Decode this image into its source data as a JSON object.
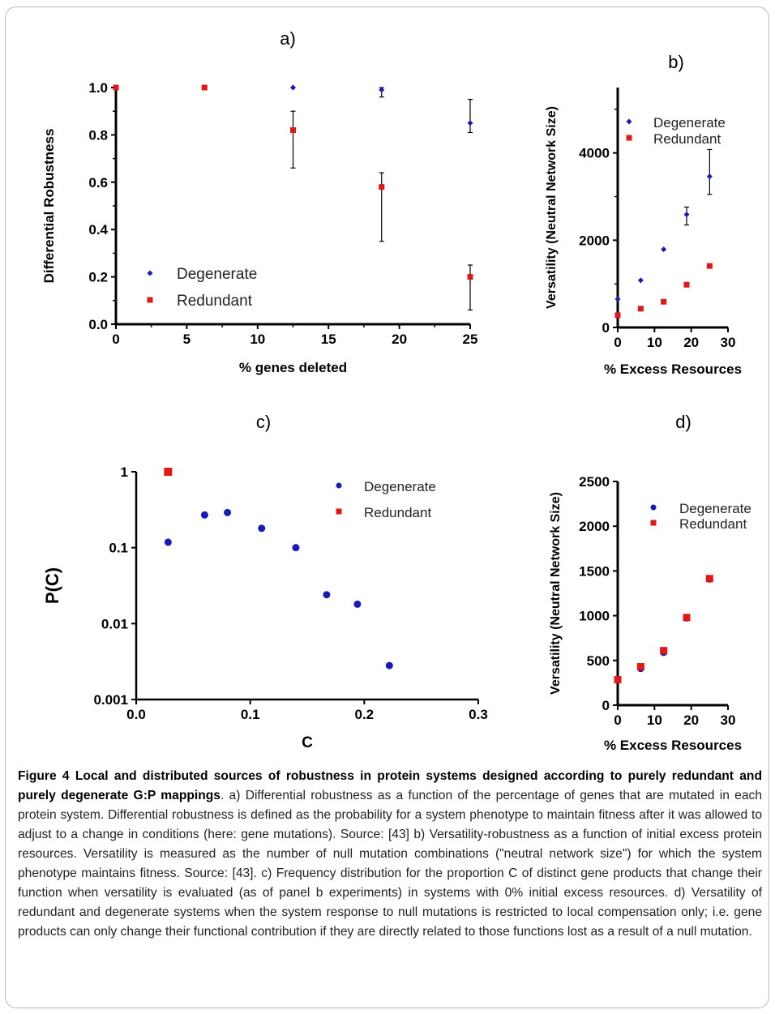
{
  "chart_data": [
    {
      "panel": "a)",
      "type": "scatter",
      "xlabel": "% genes deleted",
      "ylabel": "Differential Robustness",
      "xlim": [
        0,
        25
      ],
      "ylim": [
        0,
        1.0
      ],
      "xticks": [
        "0",
        "5",
        "10",
        "15",
        "20",
        "25"
      ],
      "yticks": [
        "0.0",
        "0.2",
        "0.4",
        "0.6",
        "0.8",
        "1.0"
      ],
      "legend_position": "bottom-left",
      "series": [
        {
          "name": "Degenerate",
          "color": "#1a1ab8",
          "marker": "diamond",
          "points": [
            {
              "x": 0,
              "y": 1.0
            },
            {
              "x": 6.25,
              "y": 1.0
            },
            {
              "x": 12.5,
              "y": 1.0
            },
            {
              "x": 18.75,
              "y": 0.99,
              "err_lo": 0.96,
              "err_hi": 1.0
            },
            {
              "x": 25,
              "y": 0.85,
              "err_lo": 0.81,
              "err_hi": 0.95
            }
          ]
        },
        {
          "name": "Redundant",
          "color": "#e01818",
          "marker": "square",
          "points": [
            {
              "x": 0,
              "y": 1.0
            },
            {
              "x": 6.25,
              "y": 1.0
            },
            {
              "x": 12.5,
              "y": 0.82,
              "err_lo": 0.66,
              "err_hi": 0.9
            },
            {
              "x": 18.75,
              "y": 0.58,
              "err_lo": 0.35,
              "err_hi": 0.64
            },
            {
              "x": 25,
              "y": 0.2,
              "err_lo": 0.06,
              "err_hi": 0.25
            }
          ]
        }
      ]
    },
    {
      "panel": "b)",
      "type": "scatter",
      "xlabel": "% Excess Resources",
      "ylabel": "Versatility  (Neutral Network Size)",
      "xlim": [
        0,
        30
      ],
      "ylim": [
        0,
        5500
      ],
      "xticks": [
        "0",
        "10",
        "20",
        "30"
      ],
      "yticks": [
        "0",
        "2000",
        "4000"
      ],
      "legend_position": "top-right",
      "series": [
        {
          "name": "Degenerate",
          "color": "#1a1ab8",
          "marker": "diamond",
          "points": [
            {
              "x": 0,
              "y": 650
            },
            {
              "x": 6.25,
              "y": 1080
            },
            {
              "x": 12.5,
              "y": 1790
            },
            {
              "x": 18.75,
              "y": 2590,
              "err_lo": 2350,
              "err_hi": 2760
            },
            {
              "x": 25,
              "y": 3460,
              "err_lo": 3050,
              "err_hi": 4080
            }
          ]
        },
        {
          "name": "Redundant",
          "color": "#e01818",
          "marker": "square",
          "points": [
            {
              "x": 0,
              "y": 280
            },
            {
              "x": 6.25,
              "y": 430
            },
            {
              "x": 12.5,
              "y": 590
            },
            {
              "x": 18.75,
              "y": 980
            },
            {
              "x": 25,
              "y": 1410
            }
          ]
        }
      ]
    },
    {
      "panel": "c)",
      "type": "scatter",
      "xlabel": "C",
      "ylabel": "P(C)",
      "xlim": [
        0,
        0.3
      ],
      "ylim": [
        0.001,
        1
      ],
      "yscale": "log",
      "xticks": [
        "0.0",
        "0.1",
        "0.2",
        "0.3"
      ],
      "yticks": [
        "0.001",
        "0.01",
        "0.1",
        "1"
      ],
      "legend_position": "top-right",
      "series": [
        {
          "name": "Degenerate",
          "color": "#1a1ab8",
          "marker": "circle",
          "points": [
            {
              "x": 0.028,
              "y": 0.118
            },
            {
              "x": 0.06,
              "y": 0.27
            },
            {
              "x": 0.08,
              "y": 0.29
            },
            {
              "x": 0.11,
              "y": 0.18
            },
            {
              "x": 0.14,
              "y": 0.1
            },
            {
              "x": 0.167,
              "y": 0.024
            },
            {
              "x": 0.194,
              "y": 0.018
            },
            {
              "x": 0.222,
              "y": 0.0028
            }
          ]
        },
        {
          "name": "Redundant",
          "color": "#e01818",
          "marker": "square",
          "points": [
            {
              "x": 0.028,
              "y": 1.0
            }
          ]
        }
      ]
    },
    {
      "panel": "d)",
      "type": "scatter",
      "xlabel": "% Excess Resources",
      "ylabel": "Versatility  (Neutral Network Size)",
      "xlim": [
        0,
        30
      ],
      "ylim": [
        0,
        2500
      ],
      "xticks": [
        "0",
        "10",
        "20",
        "30"
      ],
      "yticks": [
        "0",
        "500",
        "1000",
        "1500",
        "2000",
        "2500"
      ],
      "legend_position": "top-right",
      "series": [
        {
          "name": "Degenerate",
          "color": "#1a1ab8",
          "marker": "circle",
          "points": [
            {
              "x": 0,
              "y": 280
            },
            {
              "x": 6.25,
              "y": 410
            },
            {
              "x": 12.5,
              "y": 590
            },
            {
              "x": 18.75,
              "y": 975
            },
            {
              "x": 25,
              "y": 1410
            }
          ]
        },
        {
          "name": "Redundant",
          "color": "#e01818",
          "marker": "square",
          "points": [
            {
              "x": 0,
              "y": 285
            },
            {
              "x": 6.25,
              "y": 430
            },
            {
              "x": 12.5,
              "y": 610
            },
            {
              "x": 18.75,
              "y": 980
            },
            {
              "x": 25,
              "y": 1415
            }
          ]
        }
      ]
    }
  ],
  "caption": {
    "title": "Figure 4 Local and distributed sources of robustness in protein systems designed according to purely redundant and purely degenerate G:P mappings",
    "body": ". a) Differential robustness as a function of the percentage of genes that are mutated in each protein system. Differential robustness is defined as the probability for a system phenotype to maintain fitness after it was allowed to adjust to a change in conditions (here: gene mutations). Source: [43] b) Versatility-robustness as a function of initial excess protein resources. Versatility is measured as the number of null mutation combinations (\"neutral network size\") for which the system phenotype maintains fitness. Source: [43]. c) Frequency distribution for the proportion C of distinct gene products that change their function when versatility is evaluated (as of panel b experiments) in systems with 0% initial excess resources. d) Versatility of redundant and degenerate systems when the system response to null mutations is restricted to local compensation only; i.e. gene products can only change their functional contribution if they are directly related to those functions lost as a result of a null mutation."
  }
}
